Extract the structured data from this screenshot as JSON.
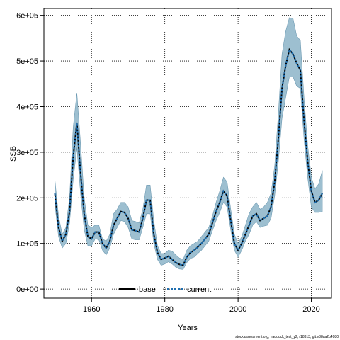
{
  "chart_data": {
    "type": "line",
    "xlabel": "Years",
    "ylabel": "SSB",
    "xlim": [
      1947,
      2025.5
    ],
    "ylim": [
      -20000,
      615000
    ],
    "xticks": [
      1960,
      1980,
      2000,
      2020
    ],
    "xtick_labels": [
      "1960",
      "1980",
      "2000",
      "2020"
    ],
    "yticks": [
      0,
      100000,
      200000,
      300000,
      400000,
      500000,
      600000
    ],
    "ytick_labels": [
      "0e+00",
      "1e+05",
      "2e+05",
      "3e+05",
      "4e+05",
      "5e+05",
      "6e+05"
    ],
    "grid": true,
    "legend_position": "bottom-center",
    "band_color": "#9dbfd0",
    "band_edge_color": "#6f9bb3",
    "line_color": "#000000",
    "current_color": "#1f6fb0",
    "x": [
      1950,
      1951,
      1952,
      1953,
      1954,
      1955,
      1956,
      1957,
      1958,
      1959,
      1960,
      1961,
      1962,
      1963,
      1964,
      1965,
      1966,
      1967,
      1968,
      1969,
      1970,
      1971,
      1972,
      1973,
      1974,
      1975,
      1976,
      1977,
      1978,
      1979,
      1980,
      1981,
      1982,
      1983,
      1984,
      1985,
      1986,
      1987,
      1988,
      1989,
      1990,
      1991,
      1992,
      1993,
      1994,
      1995,
      1996,
      1997,
      1998,
      1999,
      2000,
      2001,
      2002,
      2003,
      2004,
      2005,
      2006,
      2007,
      2008,
      2009,
      2010,
      2011,
      2012,
      2013,
      2014,
      2015,
      2016,
      2017,
      2018,
      2019,
      2020,
      2021,
      2022,
      2023
    ],
    "series": [
      {
        "name": "base",
        "values": [
          210000,
          135000,
          105000,
          120000,
          170000,
          290000,
          365000,
          255000,
          165000,
          115000,
          110000,
          125000,
          125000,
          100000,
          90000,
          105000,
          140000,
          155000,
          170000,
          168000,
          155000,
          130000,
          128000,
          125000,
          155000,
          195000,
          195000,
          120000,
          80000,
          65000,
          68000,
          72000,
          65000,
          58000,
          54000,
          52000,
          70000,
          80000,
          85000,
          92000,
          100000,
          110000,
          120000,
          145000,
          170000,
          190000,
          215000,
          205000,
          150000,
          100000,
          85000,
          100000,
          120000,
          140000,
          160000,
          165000,
          150000,
          155000,
          160000,
          180000,
          235000,
          330000,
          440000,
          490000,
          525000,
          515000,
          495000,
          480000,
          370000,
          280000,
          215000,
          190000,
          195000,
          210000
        ]
      },
      {
        "name": "current",
        "values": [
          210000,
          135000,
          105000,
          120000,
          170000,
          290000,
          365000,
          255000,
          165000,
          115000,
          110000,
          125000,
          125000,
          100000,
          90000,
          105000,
          140000,
          155000,
          170000,
          168000,
          155000,
          130000,
          128000,
          125000,
          155000,
          195000,
          195000,
          120000,
          80000,
          65000,
          68000,
          72000,
          65000,
          58000,
          54000,
          52000,
          70000,
          80000,
          85000,
          92000,
          100000,
          110000,
          120000,
          145000,
          170000,
          190000,
          215000,
          205000,
          150000,
          100000,
          85000,
          100000,
          120000,
          140000,
          160000,
          165000,
          150000,
          155000,
          160000,
          180000,
          235000,
          330000,
          440000,
          490000,
          525000,
          515000,
          495000,
          480000,
          370000,
          280000,
          215000,
          190000,
          195000,
          210000
        ]
      }
    ],
    "band_upper": [
      240000,
      160000,
      120000,
      135000,
      200000,
      355000,
      430000,
      320000,
      200000,
      140000,
      135000,
      140000,
      140000,
      110000,
      105000,
      120000,
      165000,
      175000,
      190000,
      190000,
      180000,
      150000,
      148000,
      145000,
      175000,
      228000,
      228000,
      150000,
      95000,
      78000,
      78000,
      85000,
      83000,
      75000,
      68000,
      65000,
      85000,
      95000,
      100000,
      105000,
      115000,
      125000,
      135000,
      160000,
      190000,
      215000,
      245000,
      235000,
      175000,
      120000,
      100000,
      115000,
      140000,
      165000,
      180000,
      190000,
      175000,
      180000,
      190000,
      210000,
      270000,
      385000,
      515000,
      565000,
      595000,
      593000,
      555000,
      545000,
      420000,
      315000,
      245000,
      220000,
      230000,
      260000
    ],
    "band_lower": [
      185000,
      115000,
      90000,
      100000,
      145000,
      240000,
      310000,
      210000,
      130000,
      95000,
      95000,
      110000,
      108000,
      85000,
      75000,
      90000,
      120000,
      135000,
      150000,
      148000,
      135000,
      110000,
      108000,
      108000,
      135000,
      165000,
      165000,
      100000,
      65000,
      52000,
      55000,
      60000,
      55000,
      48000,
      44000,
      43000,
      58000,
      67000,
      70000,
      78000,
      85000,
      95000,
      105000,
      128000,
      150000,
      168000,
      190000,
      180000,
      130000,
      85000,
      70000,
      85000,
      105000,
      120000,
      140000,
      148000,
      135000,
      138000,
      140000,
      155000,
      205000,
      280000,
      375000,
      420000,
      465000,
      465000,
      445000,
      440000,
      330000,
      245000,
      180000,
      168000,
      168000,
      170000
    ]
  },
  "footnote": "stockassessment.org, haddock_test_y2, r18313, git:e38aa2b4980"
}
